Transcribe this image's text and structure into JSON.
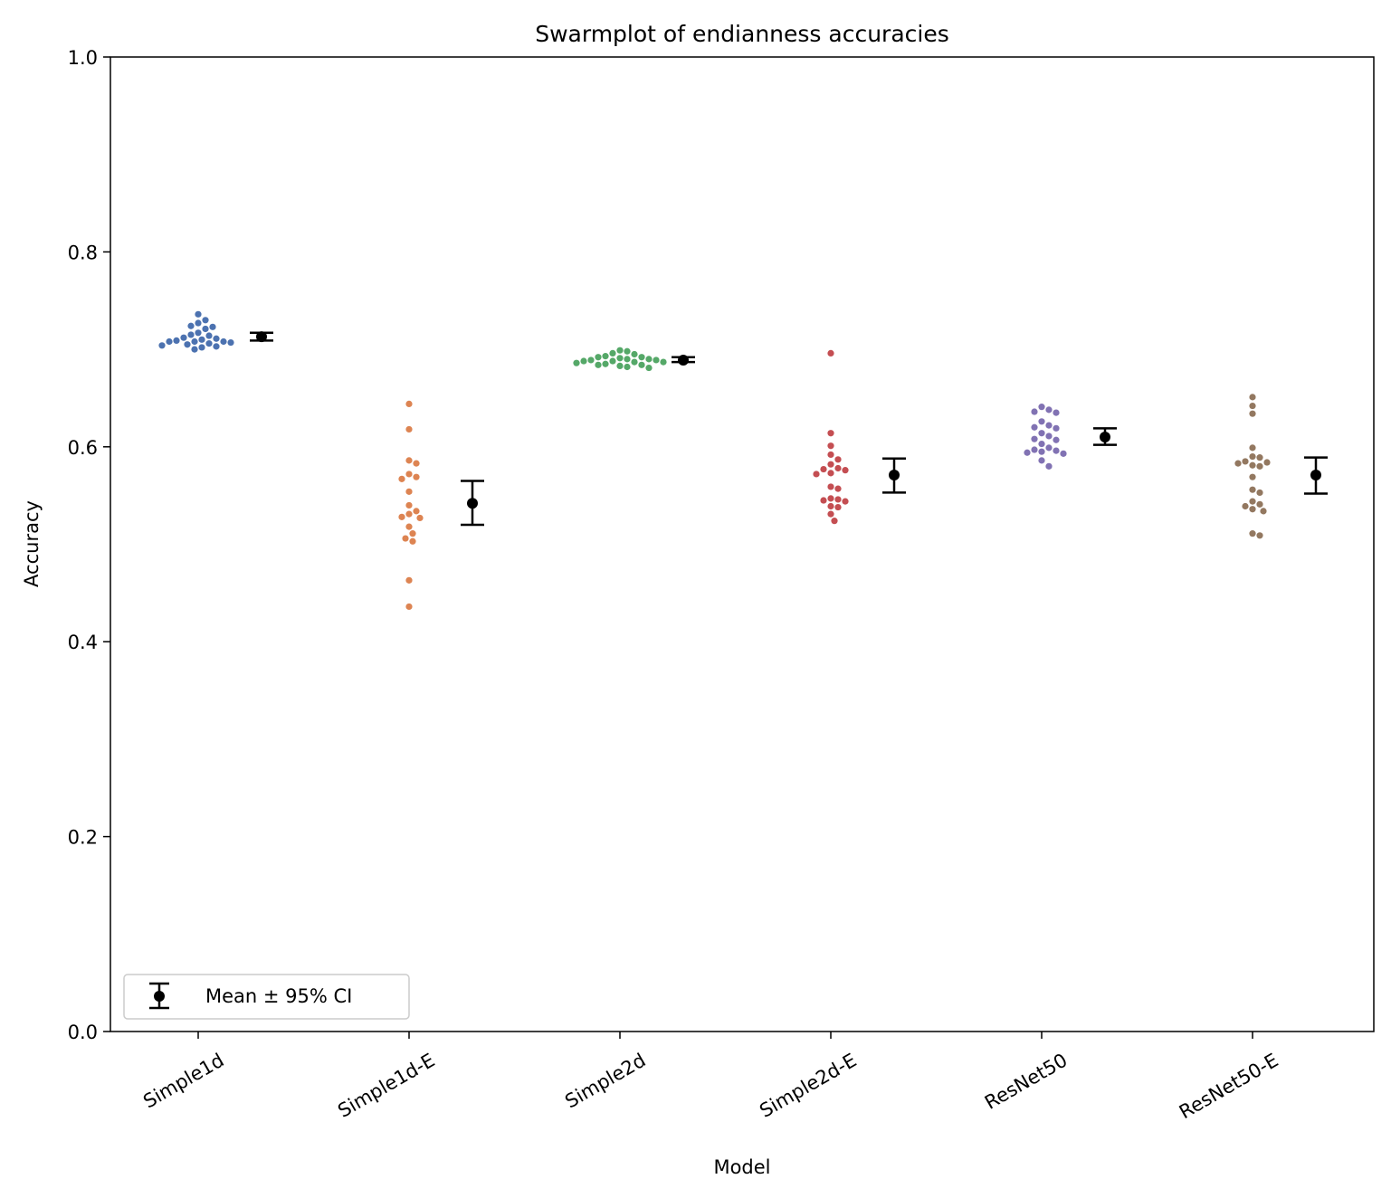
{
  "chart_data": {
    "type": "scatter",
    "subtype": "swarmplot with mean and 95% CI error bars",
    "title": "Swarmplot of endianness accuracies",
    "xlabel": "Model",
    "ylabel": "Accuracy",
    "ylim": [
      0.0,
      1.0
    ],
    "yticks": [
      "0.0",
      "0.2",
      "0.4",
      "0.6",
      "0.8",
      "1.0"
    ],
    "grid": false,
    "legend": {
      "location": "lower-left",
      "label": "Mean ± 95% CI",
      "marker_color": "#000000"
    },
    "categories": [
      "Simple1d",
      "Simple1d-E",
      "Simple2d",
      "Simple2d-E",
      "ResNet50",
      "ResNet50-E"
    ],
    "series": [
      {
        "category": "Simple1d",
        "color": "#4c72b0",
        "points": [
          0.736,
          0.73,
          0.727,
          0.724,
          0.721,
          0.723,
          0.717,
          0.715,
          0.714,
          0.712,
          0.711,
          0.71,
          0.709,
          0.708,
          0.708,
          0.708,
          0.707,
          0.706,
          0.705,
          0.704,
          0.703,
          0.702,
          0.7
        ],
        "mean": 0.713,
        "ci": [
          0.709,
          0.717
        ]
      },
      {
        "category": "Simple1d-E",
        "color": "#dd8452",
        "points": [
          0.644,
          0.618,
          0.586,
          0.583,
          0.572,
          0.569,
          0.567,
          0.554,
          0.54,
          0.534,
          0.531,
          0.528,
          0.527,
          0.518,
          0.511,
          0.506,
          0.503,
          0.463,
          0.436
        ],
        "mean": 0.542,
        "ci": [
          0.52,
          0.565
        ]
      },
      {
        "category": "Simple2d",
        "color": "#55a868",
        "points": [
          0.699,
          0.698,
          0.696,
          0.695,
          0.693,
          0.692,
          0.692,
          0.691,
          0.69,
          0.69,
          0.689,
          0.689,
          0.688,
          0.688,
          0.687,
          0.687,
          0.686,
          0.685,
          0.684,
          0.684,
          0.683,
          0.682,
          0.681
        ],
        "mean": 0.689,
        "ci": [
          0.687,
          0.692
        ]
      },
      {
        "category": "Simple2d-E",
        "color": "#c44e52",
        "points": [
          0.696,
          0.614,
          0.601,
          0.592,
          0.587,
          0.582,
          0.578,
          0.577,
          0.576,
          0.573,
          0.572,
          0.559,
          0.557,
          0.547,
          0.546,
          0.545,
          0.544,
          0.539,
          0.538,
          0.531,
          0.524
        ],
        "mean": 0.571,
        "ci": [
          0.553,
          0.588
        ]
      },
      {
        "category": "ResNet50",
        "color": "#8172b3",
        "points": [
          0.641,
          0.638,
          0.636,
          0.635,
          0.626,
          0.622,
          0.62,
          0.619,
          0.614,
          0.611,
          0.608,
          0.607,
          0.603,
          0.599,
          0.597,
          0.596,
          0.595,
          0.594,
          0.593,
          0.586,
          0.58
        ],
        "mean": 0.61,
        "ci": [
          0.602,
          0.619
        ]
      },
      {
        "category": "ResNet50-E",
        "color": "#937860",
        "points": [
          0.651,
          0.642,
          0.634,
          0.599,
          0.59,
          0.589,
          0.585,
          0.584,
          0.583,
          0.581,
          0.58,
          0.569,
          0.556,
          0.553,
          0.544,
          0.541,
          0.539,
          0.536,
          0.534,
          0.511,
          0.509
        ],
        "mean": 0.571,
        "ci": [
          0.552,
          0.589
        ]
      }
    ]
  }
}
